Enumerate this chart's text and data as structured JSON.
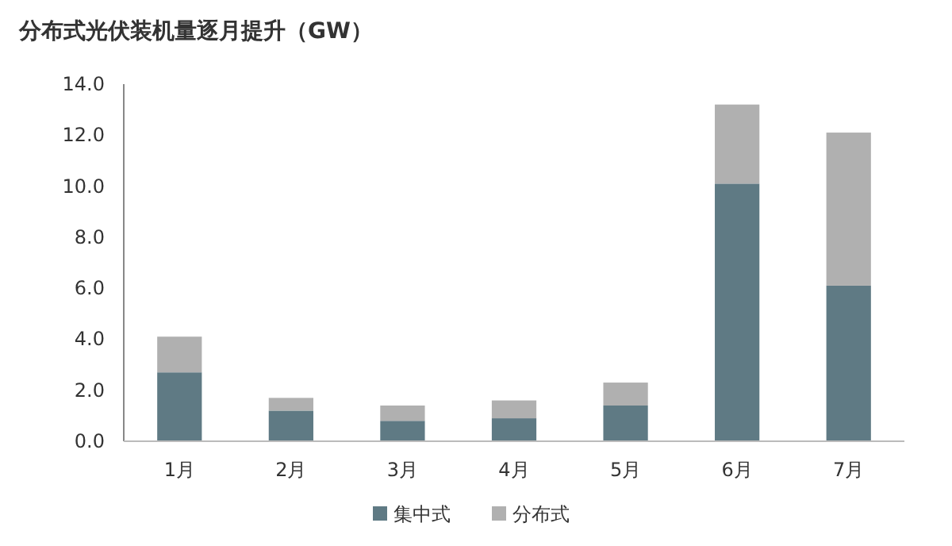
{
  "chart_data": {
    "type": "bar",
    "title": "分布式光伏装机量逐月提升（GW）",
    "categories": [
      "1月",
      "2月",
      "3月",
      "4月",
      "5月",
      "6月",
      "7月"
    ],
    "stacked": true,
    "series": [
      {
        "name": "集中式",
        "color": "#5f7a84",
        "values": [
          2.7,
          1.2,
          0.8,
          0.9,
          1.4,
          10.1,
          6.1
        ]
      },
      {
        "name": "分布式",
        "color": "#b0b0b0",
        "values": [
          1.4,
          0.5,
          0.6,
          0.7,
          0.9,
          3.1,
          6.0
        ]
      }
    ],
    "ylim": [
      0,
      14
    ],
    "yticks": [
      {
        "value": 0,
        "label": "0.0"
      },
      {
        "value": 2,
        "label": "2.0"
      },
      {
        "value": 4,
        "label": "4.0"
      },
      {
        "value": 6,
        "label": "6.0"
      },
      {
        "value": 8,
        "label": "8.0"
      },
      {
        "value": 10,
        "label": "10.0"
      },
      {
        "value": 12,
        "label": "12.0"
      },
      {
        "value": 14,
        "label": "14.0"
      }
    ],
    "grid": false,
    "legend": "bottom"
  }
}
